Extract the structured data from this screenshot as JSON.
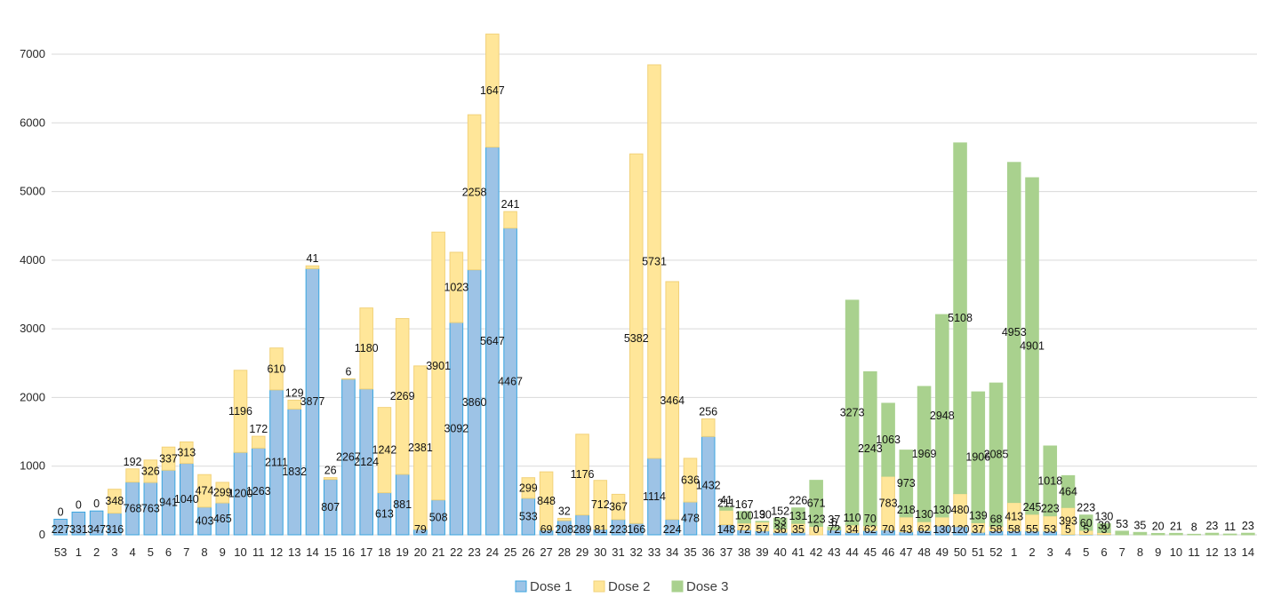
{
  "chart_data": {
    "type": "bar",
    "stacked": true,
    "grid": true,
    "legend": "bottom-center",
    "ylim": [
      0,
      7000
    ],
    "yticks": [
      0,
      1000,
      2000,
      3000,
      4000,
      5000,
      6000,
      7000
    ],
    "categories": [
      "53",
      "1",
      "2",
      "3",
      "4",
      "5",
      "6",
      "7",
      "8",
      "9",
      "10",
      "11",
      "12",
      "13",
      "14",
      "15",
      "16",
      "17",
      "18",
      "19",
      "20",
      "21",
      "22",
      "23",
      "24",
      "25",
      "26",
      "27",
      "28",
      "29",
      "30",
      "31",
      "32",
      "33",
      "34",
      "35",
      "36",
      "37",
      "38",
      "39",
      "40",
      "41",
      "42",
      "43",
      "44",
      "45",
      "46",
      "47",
      "48",
      "49",
      "50",
      "51",
      "52",
      "1",
      "2",
      "3",
      "4",
      "5",
      "6",
      "7",
      "8",
      "9",
      "10",
      "11",
      "12",
      "13",
      "14"
    ],
    "series": [
      {
        "name": "Dose 1",
        "color": "#9DC3E6",
        "edge": "#3AA6E0",
        "values": [
          227,
          331,
          347,
          316,
          768,
          763,
          941,
          1040,
          403,
          465,
          1200,
          1263,
          2111,
          1832,
          3877,
          807,
          2267,
          2124,
          613,
          881,
          79,
          508,
          3092,
          3860,
          5647,
          4467,
          533,
          69,
          208,
          289,
          81,
          223,
          166,
          1114,
          224,
          478,
          1432,
          148,
          72,
          57,
          36,
          35,
          0,
          72,
          34,
          62,
          70,
          43,
          62,
          130,
          120,
          37,
          58,
          58,
          55,
          53,
          5,
          5,
          3,
          0,
          0,
          0,
          0,
          0,
          0,
          0,
          0
        ]
      },
      {
        "name": "Dose 2",
        "color": "#FFE699",
        "edge": "#F2D27A",
        "values": [
          0,
          0,
          0,
          348,
          192,
          326,
          337,
          313,
          474,
          299,
          1196,
          172,
          610,
          129,
          41,
          26,
          6,
          1180,
          1242,
          2269,
          2381,
          3901,
          1023,
          2258,
          1647,
          241,
          299,
          848,
          32,
          1176,
          712,
          367,
          5382,
          5731,
          3464,
          636,
          256,
          211,
          100,
          130,
          53,
          131,
          123,
          6,
          110,
          70,
          783,
          218,
          130,
          130,
          480,
          139,
          68,
          413,
          245,
          223,
          393,
          60,
          30,
          0,
          0,
          0,
          0,
          0,
          0,
          0,
          0
        ]
      },
      {
        "name": "Dose 3",
        "color": "#A9D18E",
        "edge": "#A9D18E",
        "values": [
          0,
          0,
          0,
          0,
          0,
          0,
          0,
          0,
          0,
          0,
          0,
          0,
          0,
          0,
          0,
          0,
          0,
          0,
          0,
          0,
          0,
          0,
          0,
          0,
          0,
          0,
          0,
          0,
          0,
          0,
          0,
          0,
          0,
          0,
          0,
          0,
          0,
          41,
          167,
          9,
          152,
          226,
          671,
          37,
          3273,
          2243,
          1063,
          973,
          1969,
          2948,
          5108,
          1906,
          2085,
          4953,
          4901,
          1018,
          464,
          223,
          130,
          53,
          35,
          20,
          21,
          8,
          23,
          11,
          23
        ]
      }
    ]
  },
  "legend": {
    "items": [
      {
        "label": "Dose 1",
        "color": "#9DC3E6",
        "edge": "#3AA6E0"
      },
      {
        "label": "Dose 2",
        "color": "#FFE699",
        "edge": "#F2D27A"
      },
      {
        "label": "Dose 3",
        "color": "#A9D18E",
        "edge": "#A9D18E"
      }
    ]
  }
}
